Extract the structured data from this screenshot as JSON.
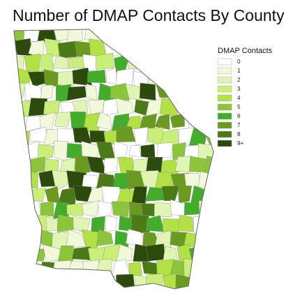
{
  "title": "Number of DMAP Contacts By County",
  "legend": {
    "title": "DMAP Contacts",
    "items": [
      {
        "label": "0",
        "color": "#ffffff"
      },
      {
        "label": "1",
        "color": "#f1f9da"
      },
      {
        "label": "2",
        "color": "#e0f5b3"
      },
      {
        "label": "3",
        "color": "#c9ef78"
      },
      {
        "label": "4",
        "color": "#b2e045"
      },
      {
        "label": "5",
        "color": "#8cc43b"
      },
      {
        "label": "6",
        "color": "#43ad2b"
      },
      {
        "label": "7",
        "color": "#6b9a20"
      },
      {
        "label": "8",
        "color": "#4b7a16"
      },
      {
        "label": "9+",
        "color": "#2b4a0b"
      }
    ]
  }
}
